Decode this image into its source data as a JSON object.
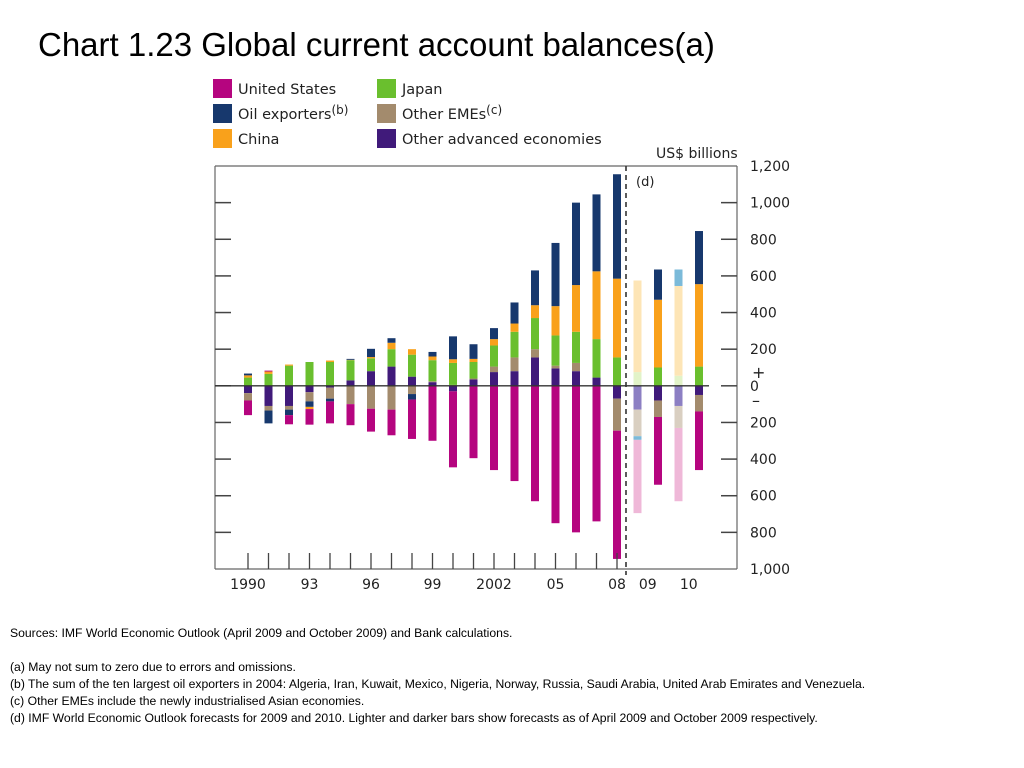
{
  "title": "Chart 1.23  Global current account balances(a)",
  "chart_data": {
    "type": "bar",
    "stacked": true,
    "unit_label": "US$ billions",
    "ylim": [
      -1000,
      1200
    ],
    "yticks": [
      {
        "value": 1200,
        "label": "1,200"
      },
      {
        "value": 1000,
        "label": "1,000"
      },
      {
        "value": 800,
        "label": "800"
      },
      {
        "value": 600,
        "label": "600"
      },
      {
        "value": 400,
        "label": "400"
      },
      {
        "value": 200,
        "label": "200"
      },
      {
        "value": 0,
        "label": "0"
      },
      {
        "value": -200,
        "label": "200"
      },
      {
        "value": -400,
        "label": "400"
      },
      {
        "value": -600,
        "label": "600"
      },
      {
        "value": -800,
        "label": "800"
      },
      {
        "value": -1000,
        "label": "1,000"
      }
    ],
    "plus_label": "+",
    "minus_label": "–",
    "forecast_marker": "(d)",
    "x_tick_labels": [
      {
        "label": "1990",
        "at": 0
      },
      {
        "label": "93",
        "at": 3
      },
      {
        "label": "96",
        "at": 6
      },
      {
        "label": "99",
        "at": 9
      },
      {
        "label": "2002",
        "at": 12
      },
      {
        "label": "05",
        "at": 15
      },
      {
        "label": "08",
        "at": 18
      },
      {
        "label": "09",
        "at": 19.5
      },
      {
        "label": "10",
        "at": 21.5
      }
    ],
    "legend": [
      {
        "key": "us",
        "label": "United States",
        "color": "#b5057f"
      },
      {
        "key": "oil",
        "label": "Oil exporters",
        "sup": "(b)",
        "color": "#17386d"
      },
      {
        "key": "china",
        "label": "China",
        "color": "#f9a11b"
      },
      {
        "key": "japan",
        "label": "Japan",
        "color": "#6abf2e"
      },
      {
        "key": "emes",
        "label": "Other EMEs",
        "sup": "(c)",
        "color": "#a38b6d"
      },
      {
        "key": "adv",
        "label": "Other advanced economies",
        "color": "#401a7a"
      }
    ],
    "light_colors": {
      "us": "#efb8d8",
      "oil": "#7bbad9",
      "china": "#fde5b6",
      "japan": "#e2f3c8",
      "emes": "#d9cfc1",
      "adv": "#8c7fc3"
    },
    "stack_order_positive": [
      "adv",
      "emes",
      "japan",
      "china",
      "oil"
    ],
    "stack_order_negative": [
      "adv",
      "emes",
      "oil",
      "us"
    ],
    "bars": [
      {
        "x": "1990",
        "pos": 0,
        "values": {
          "us": -80,
          "oil": 10,
          "china": 12,
          "japan": 45,
          "emes": -40,
          "adv": -40
        }
      },
      {
        "x": "1991",
        "pos": 1,
        "values": {
          "us": 5,
          "oil": -70,
          "china": 13,
          "japan": 65,
          "emes": -25,
          "adv": -110
        }
      },
      {
        "x": "1992",
        "pos": 2,
        "values": {
          "us": -50,
          "oil": -30,
          "china": 6,
          "japan": 110,
          "emes": -20,
          "adv": -110
        }
      },
      {
        "x": "1993",
        "pos": 3,
        "values": {
          "us": -85,
          "oil": -30,
          "china": -12,
          "japan": 130,
          "emes": -50,
          "adv": -35
        }
      },
      {
        "x": "1994",
        "pos": 4,
        "values": {
          "us": -120,
          "oil": -15,
          "china": 8,
          "japan": 130,
          "emes": -60,
          "adv": -10
        }
      },
      {
        "x": "1995",
        "pos": 5,
        "values": {
          "us": -115,
          "oil": 5,
          "china": 2,
          "japan": 110,
          "emes": -100,
          "adv": 30
        }
      },
      {
        "x": "1996",
        "pos": 6,
        "values": {
          "us": -125,
          "oil": 45,
          "china": 7,
          "japan": 70,
          "emes": -125,
          "adv": 80
        }
      },
      {
        "x": "1997",
        "pos": 7,
        "values": {
          "us": -140,
          "oil": 25,
          "china": 35,
          "japan": 95,
          "emes": -130,
          "adv": 105
        }
      },
      {
        "x": "1998",
        "pos": 8,
        "values": {
          "us": -215,
          "oil": -30,
          "china": 30,
          "japan": 120,
          "emes": -45,
          "adv": 50
        }
      },
      {
        "x": "1999",
        "pos": 9,
        "values": {
          "us": -300,
          "oil": 25,
          "china": 20,
          "japan": 115,
          "emes": 5,
          "adv": 20
        }
      },
      {
        "x": "2000",
        "pos": 10,
        "values": {
          "us": -415,
          "oil": 125,
          "china": 20,
          "japan": 120,
          "emes": 5,
          "adv": -30
        }
      },
      {
        "x": "2001",
        "pos": 11,
        "values": {
          "us": -395,
          "oil": 80,
          "china": 17,
          "japan": 90,
          "emes": 5,
          "adv": 35
        }
      },
      {
        "x": "2002",
        "pos": 12,
        "values": {
          "us": -460,
          "oil": 60,
          "china": 35,
          "japan": 115,
          "emes": 30,
          "adv": 75
        }
      },
      {
        "x": "2003",
        "pos": 13,
        "values": {
          "us": -520,
          "oil": 115,
          "china": 45,
          "japan": 140,
          "emes": 75,
          "adv": 80
        }
      },
      {
        "x": "2004",
        "pos": 14,
        "values": {
          "us": -630,
          "oil": 190,
          "china": 70,
          "japan": 170,
          "emes": 45,
          "adv": 155
        }
      },
      {
        "x": "2005",
        "pos": 15,
        "values": {
          "us": -750,
          "oil": 345,
          "china": 160,
          "japan": 165,
          "emes": 15,
          "adv": 95
        }
      },
      {
        "x": "2006",
        "pos": 16,
        "values": {
          "us": -800,
          "oil": 450,
          "china": 255,
          "japan": 170,
          "emes": 45,
          "adv": 80
        }
      },
      {
        "x": "2007",
        "pos": 17,
        "values": {
          "us": -740,
          "oil": 420,
          "china": 370,
          "japan": 210,
          "emes": 0,
          "adv": 45
        }
      },
      {
        "x": "2008",
        "pos": 18,
        "values": {
          "us": -700,
          "oil": 570,
          "china": 430,
          "japan": 155,
          "emes": -175,
          "adv": -70
        }
      },
      {
        "x": "2009 (Apr 2009 forecast)",
        "pos": 19,
        "light": true,
        "values": {
          "us": -400,
          "oil": -20,
          "china": 500,
          "japan": 75,
          "emes": -145,
          "adv": -130
        }
      },
      {
        "x": "2009 (Oct 2009 forecast)",
        "pos": 20,
        "values": {
          "us": -370,
          "oil": 165,
          "china": 370,
          "japan": 100,
          "emes": -90,
          "adv": -80
        }
      },
      {
        "x": "2010 (Apr 2009 forecast)",
        "pos": 21,
        "light": true,
        "values": {
          "us": -400,
          "oil": 90,
          "china": 490,
          "japan": 55,
          "emes": -120,
          "adv": -110
        }
      },
      {
        "x": "2010 (Oct 2009 forecast)",
        "pos": 22,
        "values": {
          "us": -320,
          "oil": 290,
          "china": 450,
          "japan": 105,
          "emes": -90,
          "adv": -50
        }
      }
    ]
  },
  "notes": {
    "sources": "Sources:  IMF World Economic Outlook (April 2009 and October 2009) and Bank calculations.",
    "a": "(a)  May not sum to zero due to errors and omissions.",
    "b": "(b)  The sum of the ten largest oil exporters in 2004:  Algeria, Iran, Kuwait, Mexico, Nigeria, Norway, Russia, Saudi Arabia, United Arab Emirates and Venezuela.",
    "c": "(c)  Other EMEs include the newly industrialised Asian economies.",
    "d": "(d)  IMF World Economic Outlook forecasts for 2009 and 2010.  Lighter and darker bars show forecasts as of April 2009 and October 2009 respectively."
  }
}
